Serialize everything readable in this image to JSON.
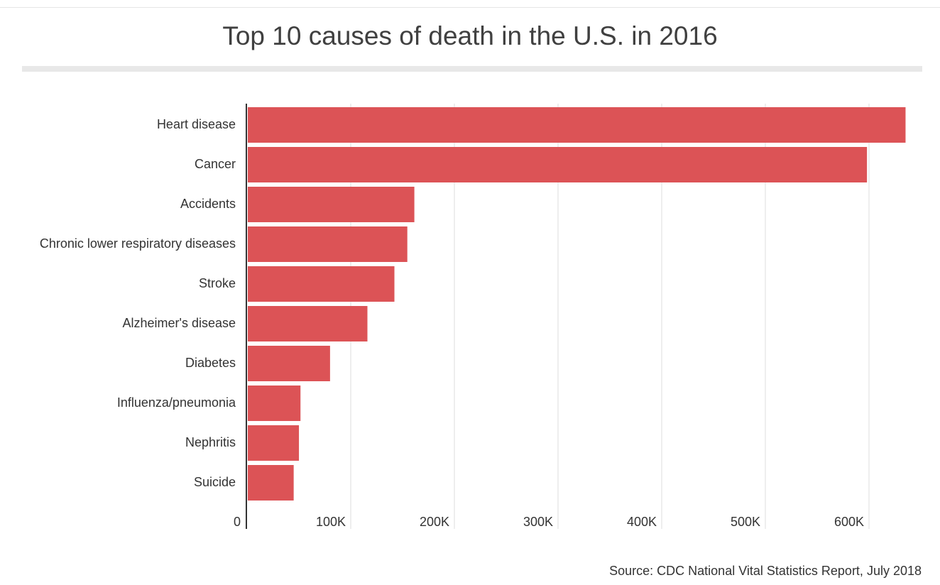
{
  "chart_data": {
    "type": "bar",
    "orientation": "horizontal",
    "title": "Top 10 causes of death in the U.S. in 2016",
    "source": "Source: CDC National Vital Statistics Report, July 2018",
    "categories": [
      "Heart disease",
      "Cancer",
      "Accidents",
      "Chronic lower respiratory diseases",
      "Stroke",
      "Alzheimer's disease",
      "Diabetes",
      "Influenza/pneumonia",
      "Nephritis",
      "Suicide"
    ],
    "values": [
      635260,
      598038,
      161374,
      154596,
      142142,
      116103,
      80058,
      51537,
      50046,
      44965
    ],
    "xlim": [
      0,
      650000
    ],
    "ticks": [
      0,
      100000,
      200000,
      300000,
      400000,
      500000,
      600000
    ],
    "tick_labels": [
      "0",
      "100K",
      "200K",
      "300K",
      "400K",
      "500K",
      "600K"
    ],
    "grid": true,
    "bar_color": "#dc5356"
  }
}
